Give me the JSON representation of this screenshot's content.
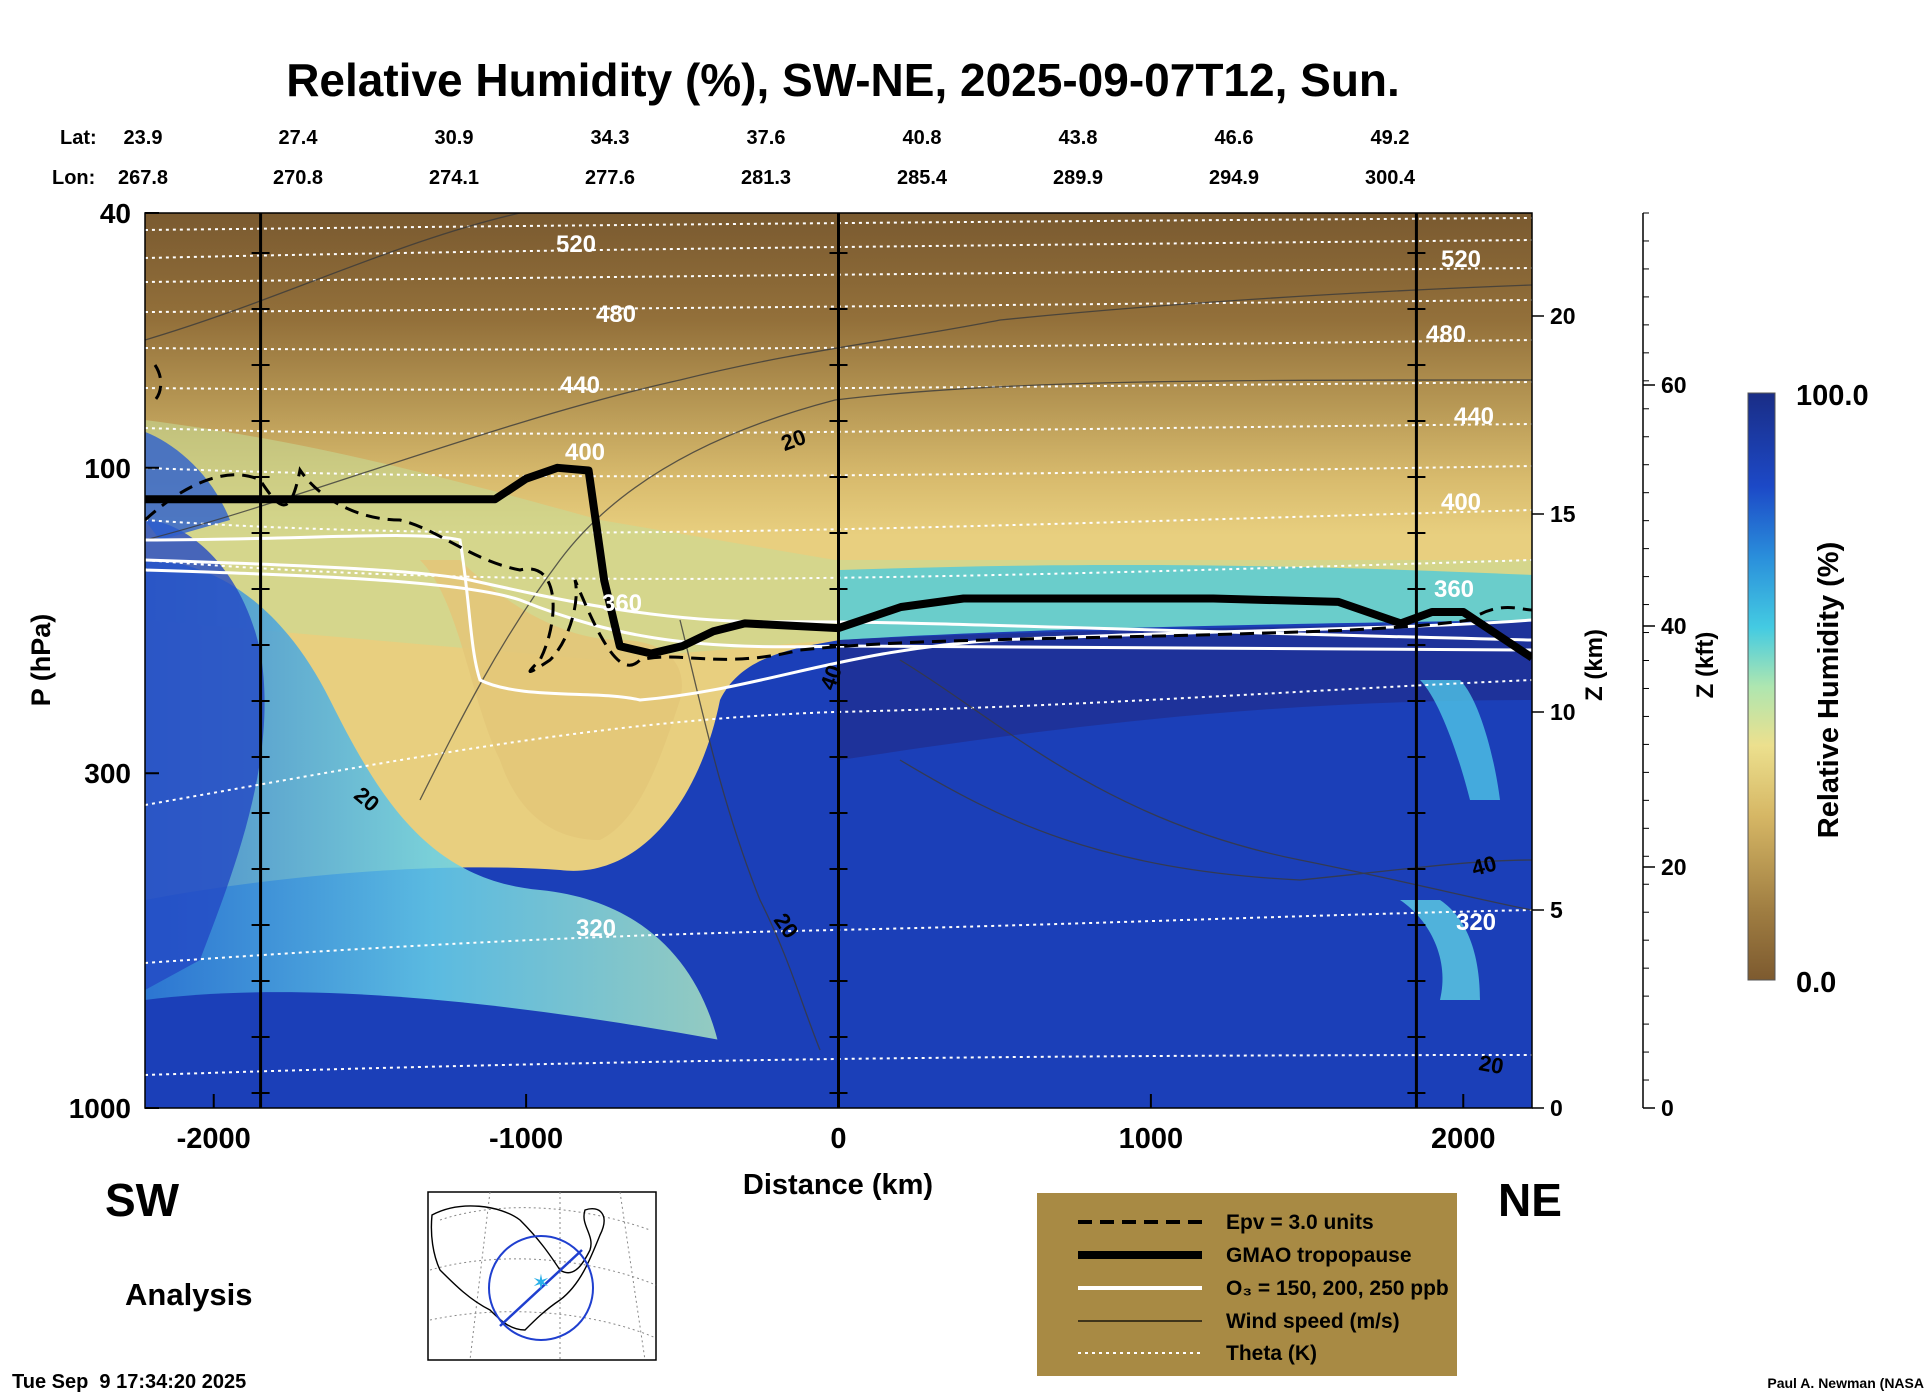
{
  "chart_data": {
    "type": "heatmap",
    "title": "Relative Humidity (%), SW-NE, 2025-09-07T12, Sun.",
    "xlabel": "Distance (km)",
    "ylabel": "P (hPa)",
    "z_km_label": "Z (km)",
    "z_kft_label": "Z (kft)",
    "xlim": [
      -2220,
      2220
    ],
    "ylim_hpa": [
      1000,
      40
    ],
    "x_ticks": [
      {
        "value": -2000,
        "label": "-2000"
      },
      {
        "value": -1000,
        "label": "-1000"
      },
      {
        "value": 0,
        "label": "0"
      },
      {
        "value": 1000,
        "label": "1000"
      },
      {
        "value": 2000,
        "label": "2000"
      }
    ],
    "p_ticks": [
      {
        "value": 40,
        "label": "40"
      },
      {
        "value": 100,
        "label": "100"
      },
      {
        "value": 300,
        "label": "300"
      },
      {
        "value": 1000,
        "label": "1000"
      }
    ],
    "z_km_ticks": [
      {
        "value": 0,
        "label": "0"
      },
      {
        "value": 5,
        "label": "5"
      },
      {
        "value": 10,
        "label": "10"
      },
      {
        "value": 15,
        "label": "15"
      },
      {
        "value": 20,
        "label": "20"
      }
    ],
    "z_kft_ticks": [
      {
        "value": 0,
        "label": "0"
      },
      {
        "value": 20,
        "label": "20"
      },
      {
        "value": 40,
        "label": "40"
      },
      {
        "value": 60,
        "label": "60"
      }
    ],
    "lat_label": "Lat:",
    "lon_label": "Lon:",
    "lat_values": [
      "23.9",
      "27.4",
      "30.9",
      "34.3",
      "37.6",
      "40.8",
      "43.8",
      "46.6",
      "49.2"
    ],
    "lon_values": [
      "267.8",
      "270.8",
      "274.1",
      "277.6",
      "281.3",
      "285.4",
      "289.9",
      "294.9",
      "300.4"
    ],
    "vertical_markers_km": [
      -1850,
      0,
      1850
    ],
    "series": [
      {
        "name": "GMAO tropopause",
        "x": [
          -2220,
          -1100,
          -1000,
          -900,
          -800,
          -750,
          -700,
          -600,
          -500,
          -400,
          -300,
          0,
          200,
          400,
          800,
          1200,
          1600,
          1800,
          1900,
          2000,
          2220
        ],
        "p_hpa": [
          112,
          112,
          104,
          100,
          101,
          150,
          190,
          195,
          190,
          180,
          175,
          178,
          165,
          160,
          160,
          160,
          162,
          175,
          168,
          168,
          198
        ]
      },
      {
        "name": "Theta 320 K",
        "x": [
          -2220,
          -1500,
          -1000,
          -500,
          0,
          500,
          1000,
          1500,
          2000,
          2220
        ],
        "p_hpa": [
          560,
          545,
          530,
          515,
          505,
          500,
          495,
          490,
          490,
          485
        ]
      },
      {
        "name": "Theta 360 K",
        "x": [
          -2220,
          -1500,
          -1000,
          -700,
          -500,
          0,
          1000,
          2000,
          2220
        ],
        "p_hpa": [
          125,
          128,
          130,
          140,
          150,
          168,
          175,
          178,
          178
        ]
      }
    ],
    "wind_contour_labels": [
      "20",
      "20",
      "20",
      "40",
      "40",
      "20"
    ],
    "theta_labels_left": [
      "520",
      "480",
      "440",
      "400",
      "360",
      "320"
    ],
    "theta_labels_right": [
      "520",
      "480",
      "440",
      "400",
      "360",
      "320"
    ],
    "colorbar": {
      "label": "Relative Humidity (%)",
      "min_label": "0.0",
      "max_label": "100.0",
      "min": 0,
      "max": 100
    }
  },
  "labels": {
    "left_dir": "SW",
    "right_dir": "NE",
    "mode": "Analysis",
    "timestamp": "Tue Sep  9 17:34:20 2025",
    "credit": "Paul A. Newman (NASA"
  },
  "legend": {
    "items": [
      {
        "label": "Epv = 3.0 units",
        "style": "dashed"
      },
      {
        "label": "GMAO tropopause",
        "style": "thick"
      },
      {
        "label": "O₃ = 150, 200, 250 ppb",
        "style": "white"
      },
      {
        "label": "Wind speed (m/s)",
        "style": "thin"
      },
      {
        "label": "Theta (K)",
        "style": "dotted"
      }
    ]
  },
  "colors": {
    "legend_bg": "#a88a44",
    "colorbar_top": "#1c2f8a",
    "colorbar_bottom": "#7d5a2f",
    "tropopause": "#000000"
  }
}
